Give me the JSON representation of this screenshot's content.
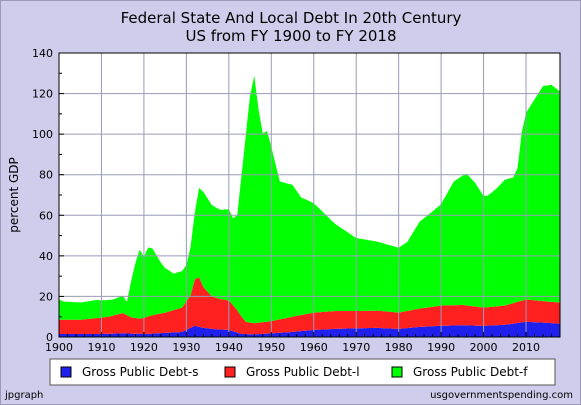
{
  "chart_data": {
    "type": "area",
    "stacked": true,
    "title": "Federal State And Local Debt In 20th Century",
    "subtitle": "US from FY 1900 to FY 2018",
    "xlabel": "",
    "ylabel": "percent GDP",
    "xlim": [
      1900,
      2018
    ],
    "ylim": [
      0,
      140
    ],
    "x_ticks": [
      1900,
      1910,
      1920,
      1930,
      1940,
      1950,
      1960,
      1970,
      1980,
      1990,
      2000,
      2010
    ],
    "y_ticks": [
      0,
      20,
      40,
      60,
      80,
      100,
      120,
      140
    ],
    "grid": true,
    "legend_position": "bottom",
    "series": [
      {
        "name": "Gross Public Debt-s",
        "color": "#2020ee",
        "points": [
          [
            1900,
            1.5
          ],
          [
            1905,
            1.5
          ],
          [
            1910,
            1.5
          ],
          [
            1915,
            1.8
          ],
          [
            1920,
            1.5
          ],
          [
            1925,
            2.0
          ],
          [
            1929,
            2.5
          ],
          [
            1932,
            5.5
          ],
          [
            1934,
            4.5
          ],
          [
            1937,
            3.8
          ],
          [
            1940,
            3.5
          ],
          [
            1943,
            1.5
          ],
          [
            1946,
            1.3
          ],
          [
            1950,
            1.8
          ],
          [
            1955,
            2.5
          ],
          [
            1960,
            3.5
          ],
          [
            1965,
            4.0
          ],
          [
            1970,
            4.3
          ],
          [
            1975,
            4.5
          ],
          [
            1980,
            4.0
          ],
          [
            1985,
            5.0
          ],
          [
            1990,
            5.5
          ],
          [
            1995,
            5.8
          ],
          [
            2000,
            5.5
          ],
          [
            2005,
            6.0
          ],
          [
            2010,
            7.5
          ],
          [
            2015,
            7.0
          ],
          [
            2018,
            6.5
          ]
        ]
      },
      {
        "name": "Gross Public Debt-l",
        "color": "#ff2020",
        "points": [
          [
            1900,
            7.0
          ],
          [
            1905,
            7.0
          ],
          [
            1910,
            8.0
          ],
          [
            1912,
            8.5
          ],
          [
            1915,
            10.0
          ],
          [
            1917,
            8.0
          ],
          [
            1919,
            7.5
          ],
          [
            1922,
            9.0
          ],
          [
            1925,
            10.0
          ],
          [
            1929,
            12.0
          ],
          [
            1931,
            16.0
          ],
          [
            1932,
            23.0
          ],
          [
            1933,
            24.5
          ],
          [
            1934,
            20.0
          ],
          [
            1936,
            16.0
          ],
          [
            1938,
            15.0
          ],
          [
            1940,
            14.5
          ],
          [
            1942,
            11.0
          ],
          [
            1944,
            6.0
          ],
          [
            1946,
            5.5
          ],
          [
            1950,
            6.0
          ],
          [
            1955,
            7.5
          ],
          [
            1960,
            8.5
          ],
          [
            1965,
            8.8
          ],
          [
            1970,
            8.5
          ],
          [
            1975,
            8.5
          ],
          [
            1980,
            8.0
          ],
          [
            1985,
            9.0
          ],
          [
            1990,
            10.0
          ],
          [
            1995,
            10.0
          ],
          [
            2000,
            9.0
          ],
          [
            2005,
            9.5
          ],
          [
            2010,
            11.0
          ],
          [
            2015,
            10.5
          ],
          [
            2018,
            10.5
          ]
        ]
      },
      {
        "name": "Gross Public Debt-f",
        "color": "#00ff00",
        "points": [
          [
            1900,
            10.0
          ],
          [
            1901,
            9.0
          ],
          [
            1905,
            8.5
          ],
          [
            1909,
            9.0
          ],
          [
            1910,
            8.5
          ],
          [
            1913,
            8.0
          ],
          [
            1915,
            8.5
          ],
          [
            1916,
            6.5
          ],
          [
            1917,
            18.0
          ],
          [
            1918,
            27.0
          ],
          [
            1919,
            34.0
          ],
          [
            1920,
            30.0
          ],
          [
            1921,
            34.0
          ],
          [
            1922,
            33.0
          ],
          [
            1924,
            25.0
          ],
          [
            1925,
            22.0
          ],
          [
            1927,
            18.0
          ],
          [
            1929,
            18.0
          ],
          [
            1930,
            18.0
          ],
          [
            1931,
            24.0
          ],
          [
            1932,
            33.0
          ],
          [
            1933,
            44.0
          ],
          [
            1934,
            47.0
          ],
          [
            1936,
            45.0
          ],
          [
            1938,
            44.0
          ],
          [
            1940,
            45.0
          ],
          [
            1941,
            43.0
          ],
          [
            1942,
            47.0
          ],
          [
            1943,
            70.0
          ],
          [
            1944,
            92.0
          ],
          [
            1945,
            112.0
          ],
          [
            1946,
            122.0
          ],
          [
            1947,
            105.0
          ],
          [
            1948,
            93.0
          ],
          [
            1949,
            94.0
          ],
          [
            1950,
            86.0
          ],
          [
            1952,
            68.0
          ],
          [
            1955,
            65.0
          ],
          [
            1957,
            58.0
          ],
          [
            1960,
            54.0
          ],
          [
            1965,
            43.0
          ],
          [
            1970,
            36.0
          ],
          [
            1975,
            34.0
          ],
          [
            1980,
            32.0
          ],
          [
            1982,
            34.0
          ],
          [
            1985,
            43.0
          ],
          [
            1988,
            47.0
          ],
          [
            1990,
            50.0
          ],
          [
            1993,
            61.0
          ],
          [
            1996,
            65.0
          ],
          [
            1998,
            61.0
          ],
          [
            2000,
            55.0
          ],
          [
            2001,
            55.0
          ],
          [
            2003,
            58.0
          ],
          [
            2005,
            62.0
          ],
          [
            2007,
            62.0
          ],
          [
            2008,
            66.0
          ],
          [
            2009,
            83.0
          ],
          [
            2010,
            92.0
          ],
          [
            2012,
            99.0
          ],
          [
            2014,
            106.0
          ],
          [
            2016,
            107.0
          ],
          [
            2018,
            104.0
          ]
        ]
      }
    ]
  },
  "footer": {
    "left": "jpgraph",
    "right": "usgovernmentspending.com"
  }
}
